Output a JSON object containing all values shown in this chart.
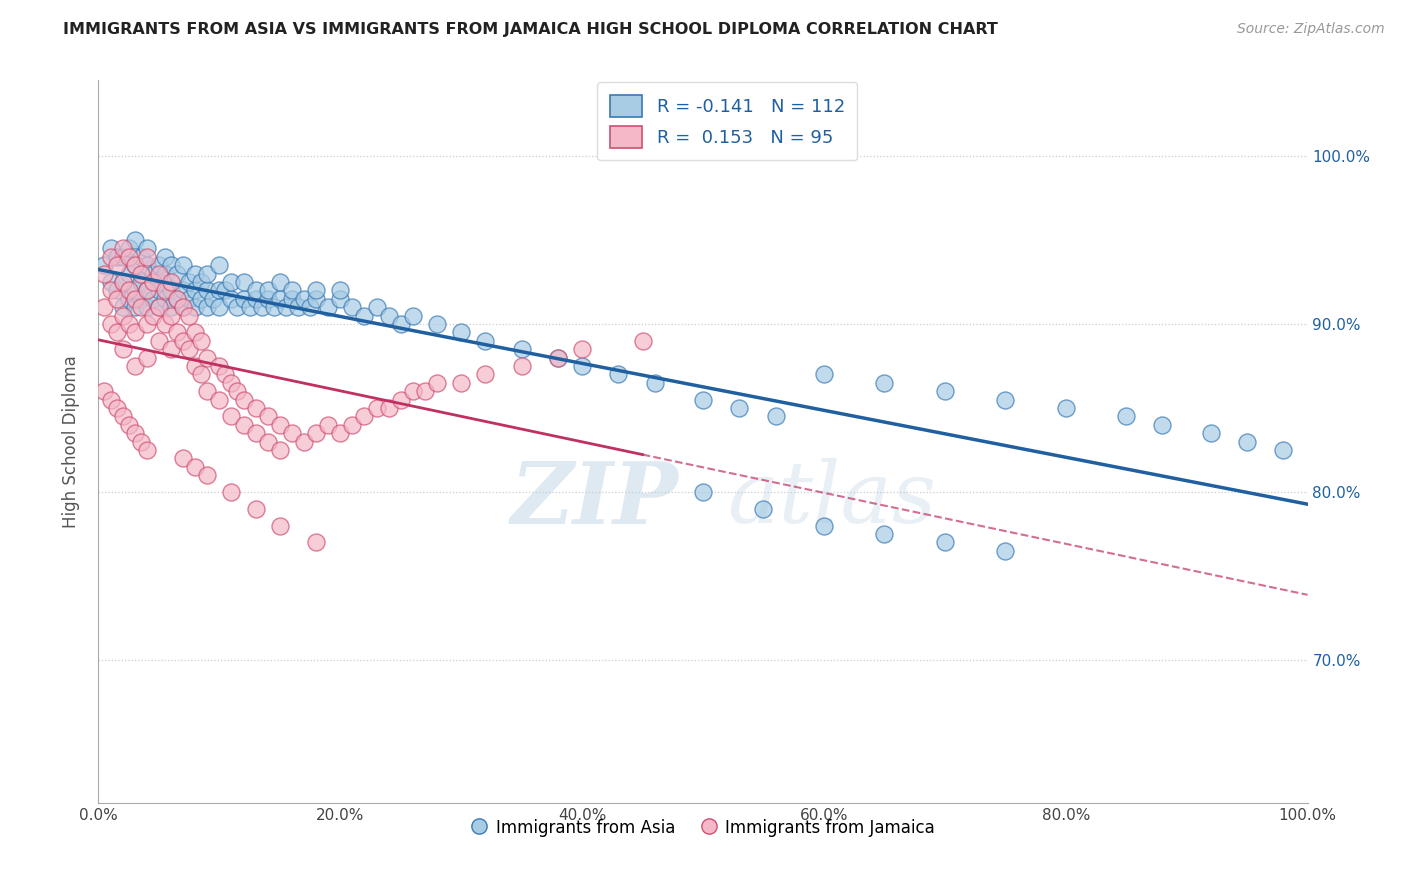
{
  "title": "IMMIGRANTS FROM ASIA VS IMMIGRANTS FROM JAMAICA HIGH SCHOOL DIPLOMA CORRELATION CHART",
  "source_text": "Source: ZipAtlas.com",
  "ylabel": "High School Diploma",
  "legend_label_blue": "Immigrants from Asia",
  "legend_label_pink": "Immigrants from Jamaica",
  "r_blue": -0.141,
  "n_blue": 112,
  "r_pink": 0.153,
  "n_pink": 95,
  "xlim": [
    0.0,
    1.0
  ],
  "ylim": [
    0.615,
    1.045
  ],
  "yticks": [
    0.7,
    0.8,
    0.9,
    1.0
  ],
  "ytick_labels": [
    "70.0%",
    "80.0%",
    "90.0%",
    "100.0%"
  ],
  "xticks": [
    0.0,
    0.2,
    0.4,
    0.6,
    0.8,
    1.0
  ],
  "xtick_labels": [
    "0.0%",
    "20.0%",
    "40.0%",
    "60.0%",
    "80.0%",
    "100.0%"
  ],
  "color_blue": "#a8cce4",
  "color_pink": "#f4b8c8",
  "edge_blue": "#3a7ab5",
  "edge_pink": "#d05070",
  "trendline_blue": "#2060a0",
  "trendline_pink": "#c03060",
  "background_color": "#ffffff",
  "watermark_color": "#d0e4f0",
  "blue_scatter_x": [
    0.005,
    0.01,
    0.01,
    0.015,
    0.015,
    0.02,
    0.02,
    0.02,
    0.025,
    0.025,
    0.025,
    0.03,
    0.03,
    0.03,
    0.03,
    0.035,
    0.035,
    0.035,
    0.04,
    0.04,
    0.04,
    0.04,
    0.045,
    0.045,
    0.05,
    0.05,
    0.05,
    0.05,
    0.055,
    0.055,
    0.055,
    0.06,
    0.06,
    0.06,
    0.065,
    0.065,
    0.07,
    0.07,
    0.07,
    0.075,
    0.075,
    0.08,
    0.08,
    0.08,
    0.085,
    0.085,
    0.09,
    0.09,
    0.09,
    0.095,
    0.1,
    0.1,
    0.1,
    0.105,
    0.11,
    0.11,
    0.115,
    0.12,
    0.12,
    0.125,
    0.13,
    0.13,
    0.135,
    0.14,
    0.14,
    0.145,
    0.15,
    0.15,
    0.155,
    0.16,
    0.16,
    0.165,
    0.17,
    0.175,
    0.18,
    0.18,
    0.19,
    0.2,
    0.2,
    0.21,
    0.22,
    0.23,
    0.24,
    0.25,
    0.26,
    0.28,
    0.3,
    0.32,
    0.35,
    0.38,
    0.4,
    0.43,
    0.46,
    0.5,
    0.53,
    0.56,
    0.6,
    0.65,
    0.7,
    0.75,
    0.8,
    0.85,
    0.88,
    0.92,
    0.95,
    0.98,
    0.5,
    0.55,
    0.6,
    0.65,
    0.7,
    0.75
  ],
  "blue_scatter_y": [
    0.935,
    0.925,
    0.945,
    0.92,
    0.94,
    0.91,
    0.925,
    0.94,
    0.915,
    0.93,
    0.945,
    0.92,
    0.935,
    0.91,
    0.95,
    0.925,
    0.94,
    0.915,
    0.92,
    0.935,
    0.91,
    0.945,
    0.93,
    0.915,
    0.92,
    0.935,
    0.91,
    0.925,
    0.915,
    0.93,
    0.94,
    0.92,
    0.91,
    0.935,
    0.915,
    0.93,
    0.92,
    0.91,
    0.935,
    0.915,
    0.925,
    0.92,
    0.91,
    0.93,
    0.915,
    0.925,
    0.92,
    0.91,
    0.93,
    0.915,
    0.92,
    0.935,
    0.91,
    0.92,
    0.915,
    0.925,
    0.91,
    0.915,
    0.925,
    0.91,
    0.915,
    0.92,
    0.91,
    0.915,
    0.92,
    0.91,
    0.915,
    0.925,
    0.91,
    0.915,
    0.92,
    0.91,
    0.915,
    0.91,
    0.915,
    0.92,
    0.91,
    0.915,
    0.92,
    0.91,
    0.905,
    0.91,
    0.905,
    0.9,
    0.905,
    0.9,
    0.895,
    0.89,
    0.885,
    0.88,
    0.875,
    0.87,
    0.865,
    0.855,
    0.85,
    0.845,
    0.87,
    0.865,
    0.86,
    0.855,
    0.85,
    0.845,
    0.84,
    0.835,
    0.83,
    0.825,
    0.8,
    0.79,
    0.78,
    0.775,
    0.77,
    0.765
  ],
  "pink_scatter_x": [
    0.005,
    0.005,
    0.01,
    0.01,
    0.01,
    0.015,
    0.015,
    0.015,
    0.02,
    0.02,
    0.02,
    0.02,
    0.025,
    0.025,
    0.025,
    0.03,
    0.03,
    0.03,
    0.03,
    0.035,
    0.035,
    0.04,
    0.04,
    0.04,
    0.04,
    0.045,
    0.045,
    0.05,
    0.05,
    0.05,
    0.055,
    0.055,
    0.06,
    0.06,
    0.06,
    0.065,
    0.065,
    0.07,
    0.07,
    0.075,
    0.075,
    0.08,
    0.08,
    0.085,
    0.085,
    0.09,
    0.09,
    0.1,
    0.1,
    0.105,
    0.11,
    0.11,
    0.115,
    0.12,
    0.12,
    0.13,
    0.13,
    0.14,
    0.14,
    0.15,
    0.15,
    0.16,
    0.17,
    0.18,
    0.19,
    0.2,
    0.21,
    0.22,
    0.23,
    0.24,
    0.25,
    0.26,
    0.27,
    0.28,
    0.3,
    0.32,
    0.35,
    0.38,
    0.4,
    0.45,
    0.005,
    0.01,
    0.015,
    0.02,
    0.025,
    0.03,
    0.035,
    0.04,
    0.07,
    0.08,
    0.09,
    0.11,
    0.13,
    0.15,
    0.18
  ],
  "pink_scatter_y": [
    0.93,
    0.91,
    0.94,
    0.92,
    0.9,
    0.935,
    0.915,
    0.895,
    0.945,
    0.925,
    0.905,
    0.885,
    0.94,
    0.92,
    0.9,
    0.935,
    0.915,
    0.895,
    0.875,
    0.93,
    0.91,
    0.94,
    0.92,
    0.9,
    0.88,
    0.925,
    0.905,
    0.93,
    0.91,
    0.89,
    0.92,
    0.9,
    0.925,
    0.905,
    0.885,
    0.915,
    0.895,
    0.91,
    0.89,
    0.905,
    0.885,
    0.895,
    0.875,
    0.89,
    0.87,
    0.88,
    0.86,
    0.875,
    0.855,
    0.87,
    0.865,
    0.845,
    0.86,
    0.855,
    0.84,
    0.85,
    0.835,
    0.845,
    0.83,
    0.84,
    0.825,
    0.835,
    0.83,
    0.835,
    0.84,
    0.835,
    0.84,
    0.845,
    0.85,
    0.85,
    0.855,
    0.86,
    0.86,
    0.865,
    0.865,
    0.87,
    0.875,
    0.88,
    0.885,
    0.89,
    0.86,
    0.855,
    0.85,
    0.845,
    0.84,
    0.835,
    0.83,
    0.825,
    0.82,
    0.815,
    0.81,
    0.8,
    0.79,
    0.78,
    0.77
  ]
}
